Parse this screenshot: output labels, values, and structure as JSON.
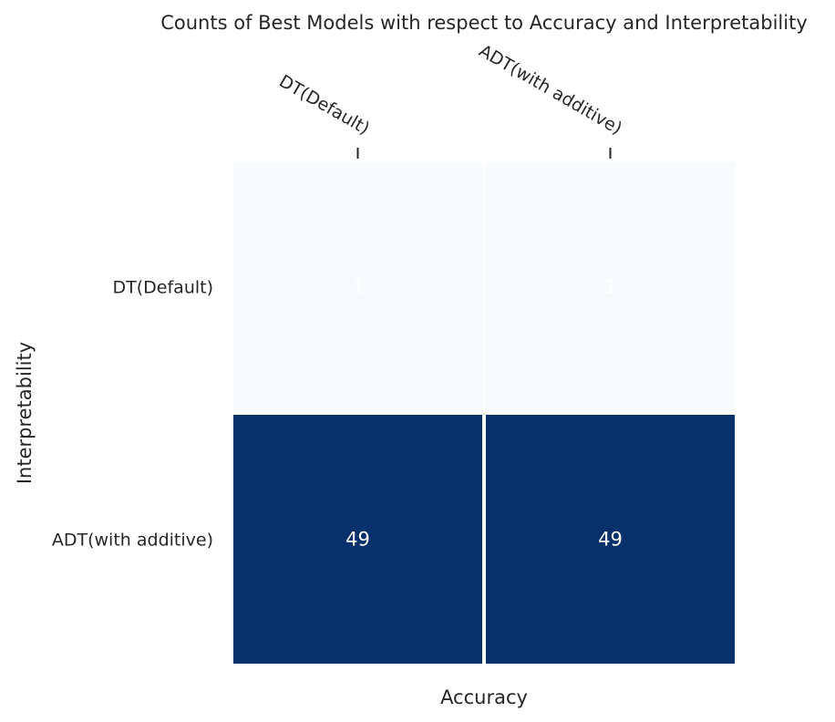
{
  "chart_data": {
    "type": "heatmap",
    "title": "Counts of Best Models with respect to Accuracy and Interpretability",
    "xlabel": "Accuracy",
    "ylabel": "Interpretability",
    "x_categories": [
      "DT(Default)",
      "ADT(with additive)"
    ],
    "y_categories": [
      "DT(Default)",
      "ADT(with additive)"
    ],
    "values": [
      [
        1,
        1
      ],
      [
        49,
        49
      ]
    ],
    "x_tick_position": "top",
    "colormap": "Blues",
    "color_low": "#f7fbff",
    "color_high": "#08306b",
    "grid": false,
    "legend": "none"
  }
}
